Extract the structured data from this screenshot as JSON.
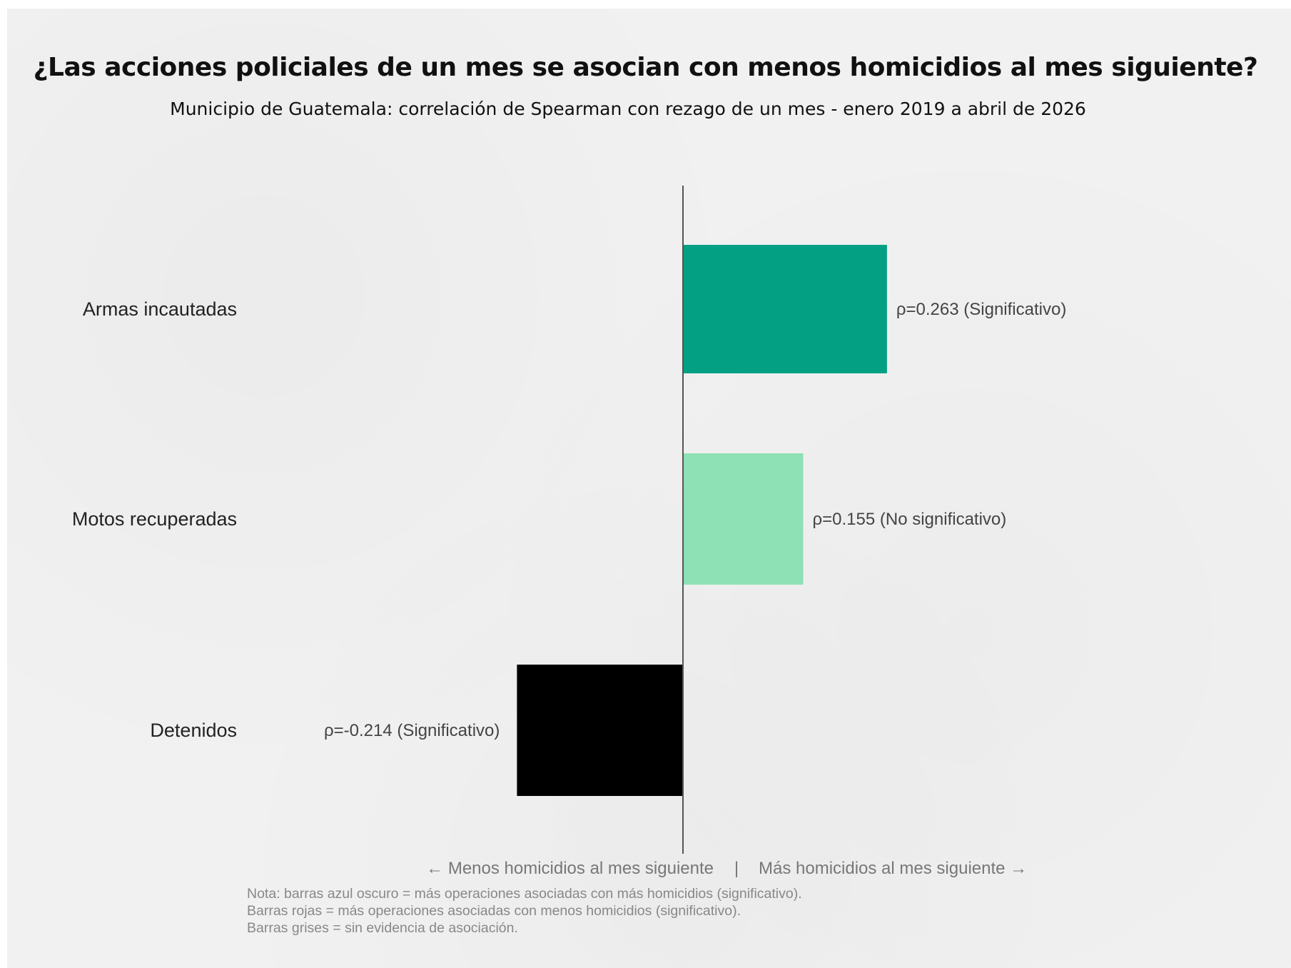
{
  "chart_data": {
    "type": "bar",
    "orientation": "horizontal",
    "title": "¿Las acciones policiales de un mes se asocian con menos homicidios al mes siguiente?",
    "subtitle": "Municipio de Guatemala: correlación de Spearman con rezago de un mes - enero 2019 a abril de 2026",
    "categories": [
      "Armas incautadas",
      "Motos recuperadas",
      "Detenidos"
    ],
    "values": [
      0.263,
      0.155,
      -0.214
    ],
    "data_labels": [
      "ρ=0.263 (Significativo)",
      "ρ=0.155 (No significativo)",
      "ρ=-0.214 (Significativo)"
    ],
    "bar_colors": [
      "#03a084",
      "#8ee0b5",
      "#000000"
    ],
    "zero_line": true,
    "grid": false,
    "xlim": [
      -0.5,
      0.5
    ],
    "axis_caption_left": "← Menos homicidios al mes siguiente",
    "axis_caption_sep": "|",
    "axis_caption_right": "Más homicidios al mes siguiente →"
  },
  "notes": [
    "Nota: barras azul oscuro = más operaciones asociadas con más homicidios (significativo).",
    "Barras rojas = más operaciones asociadas con menos homicidios (significativo).",
    "Barras grises = sin evidencia de asociación."
  ]
}
